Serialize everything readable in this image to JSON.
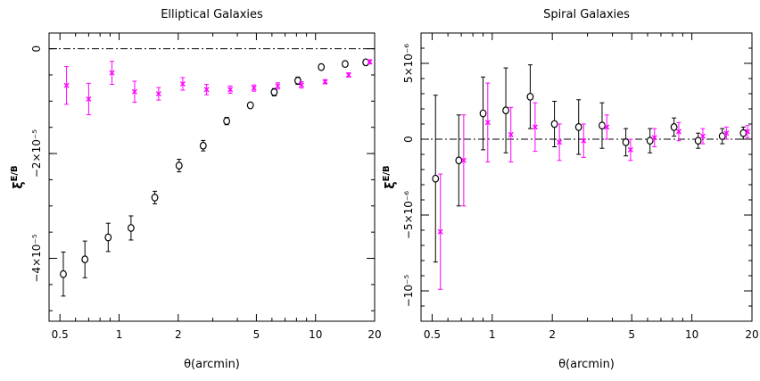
{
  "chart_data": [
    {
      "type": "scatter",
      "title": "Elliptical Galaxies",
      "xlabel": "θ(arcmin)",
      "ylabel": "ξ^E/B",
      "xscale": "log",
      "xlim": [
        0.44,
        20
      ],
      "ylim": [
        -5.2e-05,
        3e-06
      ],
      "xticks": [
        {
          "value": 0.5,
          "label": "0.5"
        },
        {
          "value": 1,
          "label": "1"
        },
        {
          "value": 2,
          "label": "2"
        },
        {
          "value": 5,
          "label": "5"
        },
        {
          "value": 10,
          "label": "10"
        },
        {
          "value": 20,
          "label": "20"
        }
      ],
      "yticks": [
        {
          "value": 0,
          "label": "0"
        },
        {
          "value": -2e-05,
          "label": "−2×10⁻⁵"
        },
        {
          "value": -4e-05,
          "label": "−4×10⁻⁵"
        }
      ],
      "zero_line": true,
      "series": [
        {
          "marker": "circle",
          "color": "#000000",
          "x": [
            0.52,
            0.67,
            0.88,
            1.15,
            1.52,
            2.02,
            2.68,
            3.53,
            4.66,
            6.16,
            8.13,
            10.7,
            14.15,
            18.04
          ],
          "y": [
            -4.3e-05,
            -4.02e-05,
            -3.6e-05,
            -3.42e-05,
            -2.84e-05,
            -2.23e-05,
            -1.85e-05,
            -1.38e-05,
            -1.08e-05,
            -8.3e-06,
            -6.1e-06,
            -3.5e-06,
            -2.9e-06,
            -2.6e-06
          ],
          "err": [
            4.2e-06,
            3.5e-06,
            2.7e-06,
            2.3e-06,
            1.2e-06,
            1.2e-06,
            1e-06,
            7e-07,
            5e-07,
            7e-07,
            7e-07,
            5e-07,
            4e-07,
            3e-07
          ]
        },
        {
          "marker": "cross",
          "color": "#ff00ff",
          "x": [
            0.54,
            0.7,
            0.92,
            1.2,
            1.59,
            2.11,
            2.79,
            3.68,
            4.86,
            6.42,
            8.48,
            11.2,
            14.75,
            18.9
          ],
          "y": [
            -7e-06,
            -9.6e-06,
            -4.6e-06,
            -8.2e-06,
            -8.6e-06,
            -6.7e-06,
            -7.8e-06,
            -7.8e-06,
            -7.5e-06,
            -7.1e-06,
            -6.9e-06,
            -6.3e-06,
            -5e-06,
            -2.5e-06
          ],
          "err": [
            3.6e-06,
            3e-06,
            2.2e-06,
            2e-06,
            1.2e-06,
            1.2e-06,
            1e-06,
            7e-07,
            6e-07,
            6e-07,
            6e-07,
            4e-07,
            4e-07,
            4e-07
          ]
        }
      ]
    },
    {
      "type": "scatter",
      "title": "Spiral Galaxies",
      "xlabel": "θ(arcmin)",
      "ylabel": "ξ^E/B",
      "xscale": "log",
      "xlim": [
        0.44,
        20
      ],
      "ylim": [
        -1.2e-05,
        7e-06
      ],
      "xticks": [
        {
          "value": 0.5,
          "label": "0.5"
        },
        {
          "value": 1,
          "label": "1"
        },
        {
          "value": 2,
          "label": "2"
        },
        {
          "value": 5,
          "label": "5"
        },
        {
          "value": 10,
          "label": "10"
        },
        {
          "value": 20,
          "label": "20"
        }
      ],
      "yticks": [
        {
          "value": 5e-06,
          "label": "5×10⁻⁶"
        },
        {
          "value": 0,
          "label": "0"
        },
        {
          "value": -5e-06,
          "label": "−5×10⁻⁶"
        },
        {
          "value": -1e-05,
          "label": "−10⁻⁵"
        }
      ],
      "zero_line": true,
      "series": [
        {
          "marker": "circle",
          "color": "#000000",
          "x": [
            0.52,
            0.68,
            0.9,
            1.17,
            1.55,
            2.05,
            2.71,
            3.55,
            4.67,
            6.17,
            8.14,
            10.75,
            14.2,
            18.1
          ],
          "y": [
            -2.6e-06,
            -1.4e-06,
            1.7e-06,
            1.9e-06,
            2.8e-06,
            1e-06,
            8e-07,
            9e-07,
            -2e-07,
            -1e-07,
            8e-07,
            -1e-07,
            2e-07,
            4e-07
          ],
          "err": [
            5.5e-06,
            3e-06,
            2.4e-06,
            2.8e-06,
            2.1e-06,
            1.5e-06,
            1.8e-06,
            1.5e-06,
            9e-07,
            8e-07,
            6e-07,
            5e-07,
            5e-07,
            4e-07
          ]
        },
        {
          "marker": "cross",
          "color": "#ff00ff",
          "x": [
            0.55,
            0.72,
            0.95,
            1.24,
            1.64,
            2.17,
            2.87,
            3.75,
            4.93,
            6.5,
            8.6,
            11.35,
            14.9,
            19.0
          ],
          "y": [
            -6.1e-06,
            -1.4e-06,
            1.1e-06,
            3e-07,
            8e-07,
            -2e-07,
            -1e-07,
            8e-07,
            -7e-07,
            1e-07,
            5e-07,
            2e-07,
            4e-07,
            5e-07
          ],
          "err": [
            3.8e-06,
            3e-06,
            2.6e-06,
            1.8e-06,
            1.6e-06,
            1.2e-06,
            1.1e-06,
            8e-07,
            7e-07,
            6e-07,
            6e-07,
            5e-07,
            4e-07,
            4e-07
          ]
        }
      ]
    }
  ]
}
